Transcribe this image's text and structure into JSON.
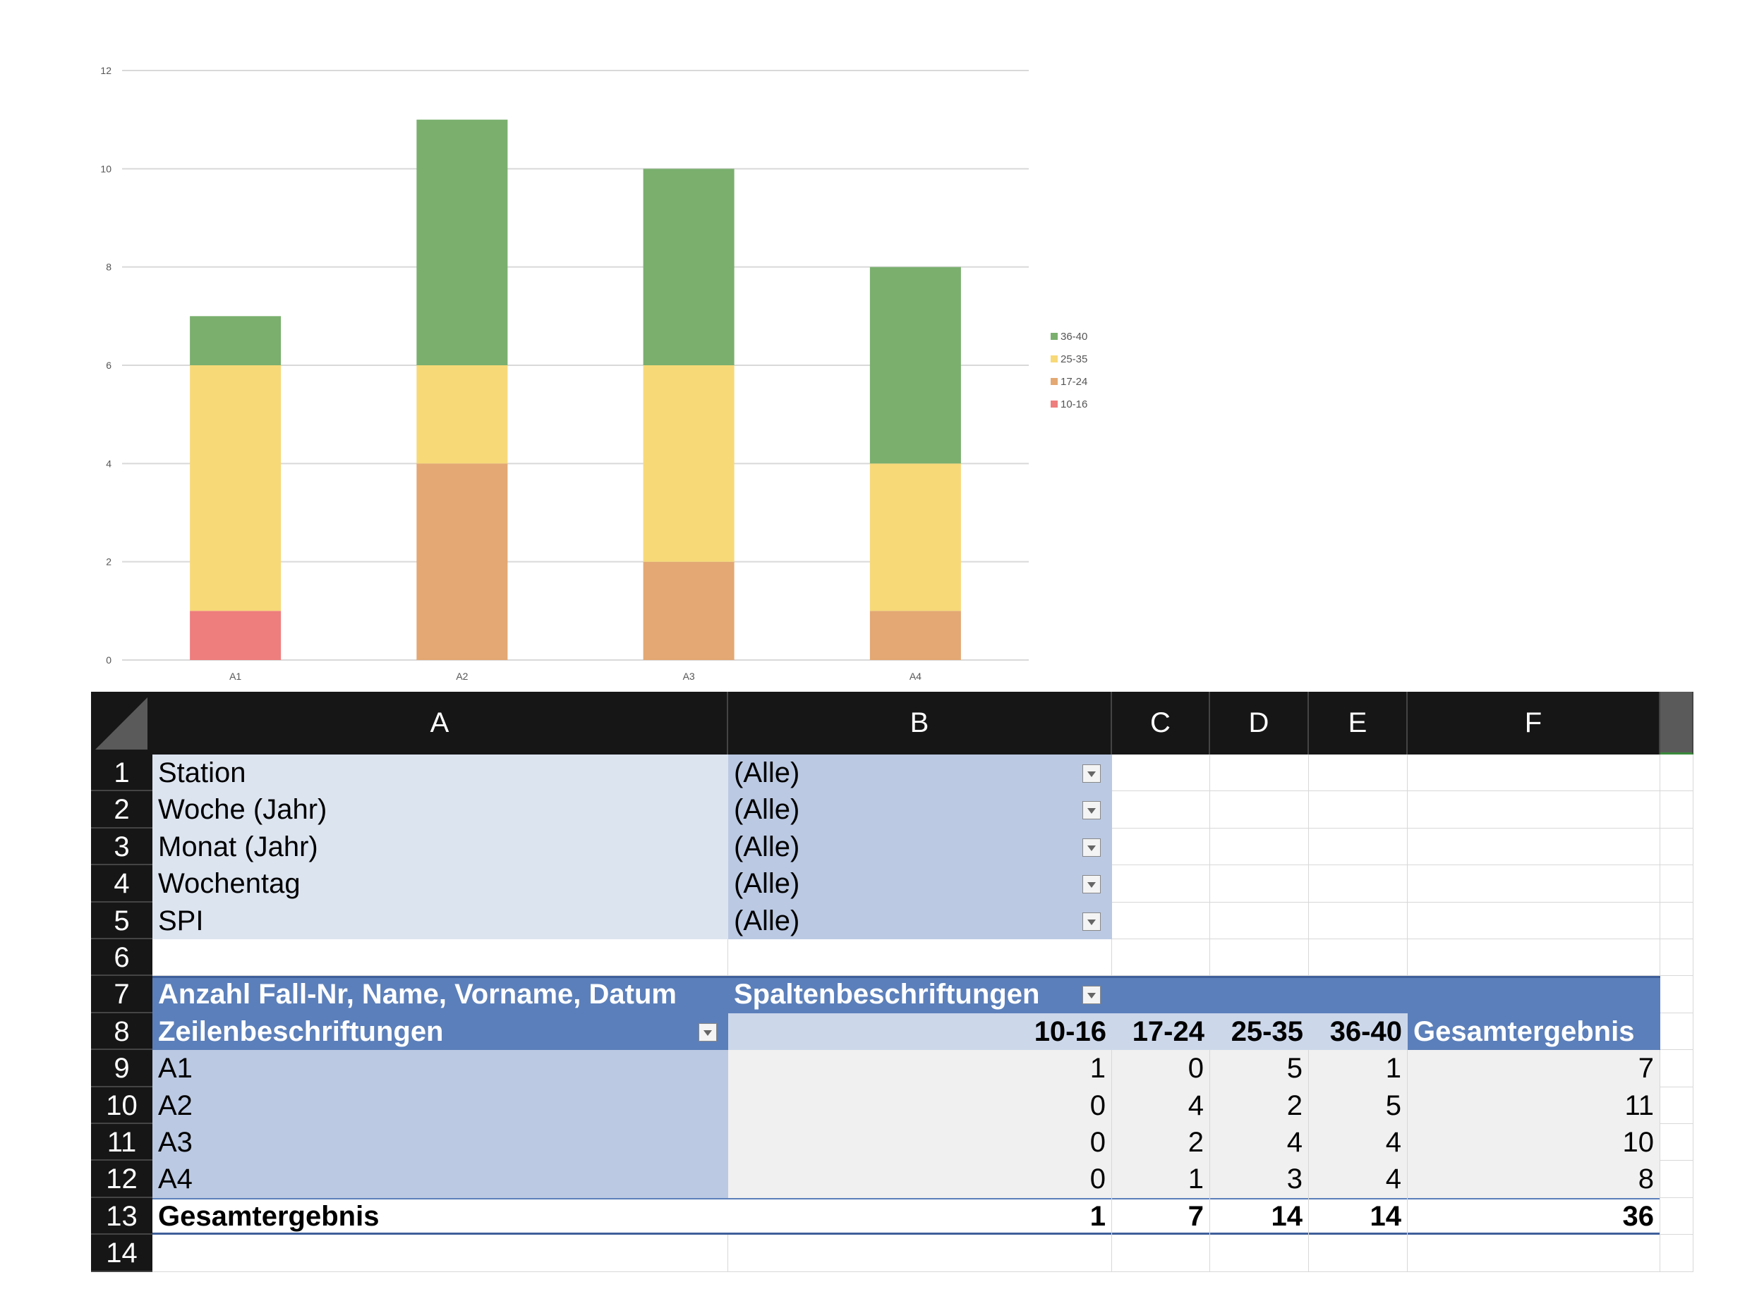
{
  "chart_data": {
    "type": "bar",
    "stacked": true,
    "categories": [
      "A1",
      "A2",
      "A3",
      "A4"
    ],
    "series": [
      {
        "name": "10-16",
        "color": "#EE7D7D",
        "values": [
          1,
          0,
          0,
          0
        ]
      },
      {
        "name": "17-24",
        "color": "#E3A873",
        "values": [
          0,
          4,
          2,
          1
        ]
      },
      {
        "name": "25-35",
        "color": "#F7D978",
        "values": [
          5,
          2,
          4,
          3
        ]
      },
      {
        "name": "36-40",
        "color": "#7AAF6E",
        "values": [
          1,
          5,
          4,
          4
        ]
      }
    ],
    "yticks": [
      0,
      2,
      4,
      6,
      8,
      10,
      12
    ],
    "ylim": [
      0,
      12
    ],
    "title": "",
    "xlabel": "",
    "ylabel": "",
    "grid": true,
    "legend": "right"
  },
  "sheet": {
    "columns": [
      "A",
      "B",
      "C",
      "D",
      "E",
      "F"
    ],
    "row_numbers": [
      "1",
      "2",
      "3",
      "4",
      "5",
      "6",
      "7",
      "8",
      "9",
      "10",
      "11",
      "12",
      "13",
      "14"
    ],
    "filters": [
      {
        "label": "Station",
        "value": "(Alle)"
      },
      {
        "label": "Woche (Jahr)",
        "value": "(Alle)"
      },
      {
        "label": "Monat (Jahr)",
        "value": "(Alle)"
      },
      {
        "label": "Wochentag",
        "value": "(Alle)"
      },
      {
        "label": "SPI",
        "value": "(Alle)"
      }
    ],
    "pivot": {
      "value_label": "Anzahl Fall-Nr, Name, Vorname, Datum",
      "column_label": "Spaltenbeschriftungen",
      "row_label": "Zeilenbeschriftungen",
      "column_headers": [
        "10-16",
        "17-24",
        "25-35",
        "36-40",
        "Gesamtergebnis"
      ],
      "rows": [
        {
          "label": "A1",
          "values": [
            "1",
            "0",
            "5",
            "1",
            "7"
          ]
        },
        {
          "label": "A2",
          "values": [
            "0",
            "4",
            "2",
            "5",
            "11"
          ]
        },
        {
          "label": "A3",
          "values": [
            "0",
            "2",
            "4",
            "4",
            "10"
          ]
        },
        {
          "label": "A4",
          "values": [
            "0",
            "1",
            "3",
            "4",
            "8"
          ]
        }
      ],
      "total": {
        "label": "Gesamtergebnis",
        "values": [
          "1",
          "7",
          "14",
          "14",
          "36"
        ]
      }
    }
  }
}
